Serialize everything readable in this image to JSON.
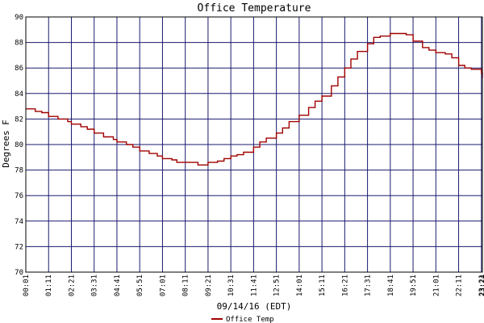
{
  "chart_data": {
    "type": "line",
    "title": "Office Temperature",
    "xlabel": "09/14/16 (EDT)",
    "ylabel": "Degrees F",
    "x_ticks": [
      "00:01",
      "01:11",
      "02:21",
      "03:31",
      "04:41",
      "05:51",
      "07:01",
      "08:11",
      "09:21",
      "10:31",
      "11:41",
      "12:51",
      "14:01",
      "15:11",
      "16:21",
      "17:31",
      "18:41",
      "19:51",
      "21:01",
      "22:11",
      "23:21",
      "23:24"
    ],
    "y_ticks": [
      70,
      72,
      74,
      76,
      78,
      80,
      82,
      84,
      86,
      88,
      90
    ],
    "xlim": [
      "00:01",
      "23:24"
    ],
    "ylim": [
      70,
      90
    ],
    "grid": true,
    "legend_position": "bottom-left",
    "series": [
      {
        "name": "Office Temp",
        "color": "#a00000",
        "points": [
          [
            "00:01",
            82.8
          ],
          [
            "00:30",
            82.6
          ],
          [
            "00:50",
            82.5
          ],
          [
            "01:11",
            82.2
          ],
          [
            "01:40",
            82.0
          ],
          [
            "02:10",
            81.8
          ],
          [
            "02:21",
            81.6
          ],
          [
            "02:50",
            81.4
          ],
          [
            "03:10",
            81.2
          ],
          [
            "03:31",
            80.9
          ],
          [
            "04:00",
            80.6
          ],
          [
            "04:30",
            80.4
          ],
          [
            "04:41",
            80.2
          ],
          [
            "05:10",
            80.0
          ],
          [
            "05:30",
            79.8
          ],
          [
            "05:51",
            79.5
          ],
          [
            "06:20",
            79.3
          ],
          [
            "06:45",
            79.1
          ],
          [
            "07:01",
            78.9
          ],
          [
            "07:30",
            78.8
          ],
          [
            "07:45",
            78.6
          ],
          [
            "08:11",
            78.6
          ],
          [
            "08:40",
            78.6
          ],
          [
            "08:50",
            78.4
          ],
          [
            "09:21",
            78.6
          ],
          [
            "09:50",
            78.7
          ],
          [
            "10:10",
            78.9
          ],
          [
            "10:31",
            79.1
          ],
          [
            "10:50",
            79.2
          ],
          [
            "11:10",
            79.4
          ],
          [
            "11:41",
            79.8
          ],
          [
            "12:00",
            80.2
          ],
          [
            "12:20",
            80.5
          ],
          [
            "12:51",
            80.9
          ],
          [
            "13:10",
            81.3
          ],
          [
            "13:30",
            81.8
          ],
          [
            "14:01",
            82.3
          ],
          [
            "14:30",
            82.9
          ],
          [
            "14:50",
            83.4
          ],
          [
            "15:11",
            83.8
          ],
          [
            "15:40",
            84.6
          ],
          [
            "16:00",
            85.3
          ],
          [
            "16:21",
            86.0
          ],
          [
            "16:40",
            86.7
          ],
          [
            "17:00",
            87.3
          ],
          [
            "17:31",
            87.9
          ],
          [
            "17:50",
            88.4
          ],
          [
            "18:10",
            88.5
          ],
          [
            "18:41",
            88.7
          ],
          [
            "19:00",
            88.7
          ],
          [
            "19:30",
            88.6
          ],
          [
            "19:51",
            88.1
          ],
          [
            "20:20",
            87.6
          ],
          [
            "20:40",
            87.4
          ],
          [
            "21:01",
            87.2
          ],
          [
            "21:30",
            87.1
          ],
          [
            "21:50",
            86.8
          ],
          [
            "22:11",
            86.2
          ],
          [
            "22:30",
            86.0
          ],
          [
            "22:50",
            85.9
          ],
          [
            "23:21",
            85.6
          ],
          [
            "23:24",
            85.2
          ]
        ]
      }
    ]
  }
}
